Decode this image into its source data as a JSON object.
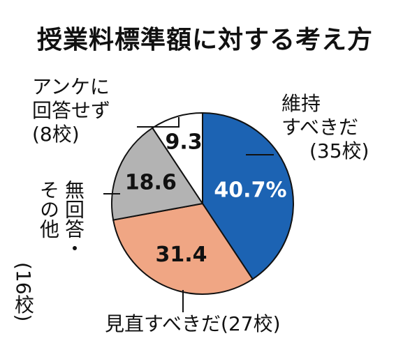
{
  "chart_data": {
    "type": "pie",
    "title": "授業料標準額に対する考え方",
    "slices": [
      {
        "name_lines": [
          "維持",
          "すべきだ"
        ],
        "count_text": "(35校)",
        "value": 40.7,
        "value_label": "40.7%",
        "color": "#1c63b3",
        "label_color": "#ffffff"
      },
      {
        "name_lines": [
          "見直すべきだ"
        ],
        "count_text": "(27校)",
        "value": 31.4,
        "value_label": "31.4",
        "color": "#f0a684",
        "label_color": "#111111"
      },
      {
        "name_lines": [
          "無回答・",
          "その他"
        ],
        "count_text": "(16校)",
        "value": 18.6,
        "value_label": "18.6",
        "color": "#b3b3b3",
        "label_color": "#111111"
      },
      {
        "name_lines": [
          "アンケに",
          "回答せず"
        ],
        "count_text": "(8校)",
        "value": 9.3,
        "value_label": "9.3",
        "color": "#ffffff",
        "label_color": "#111111"
      }
    ]
  }
}
